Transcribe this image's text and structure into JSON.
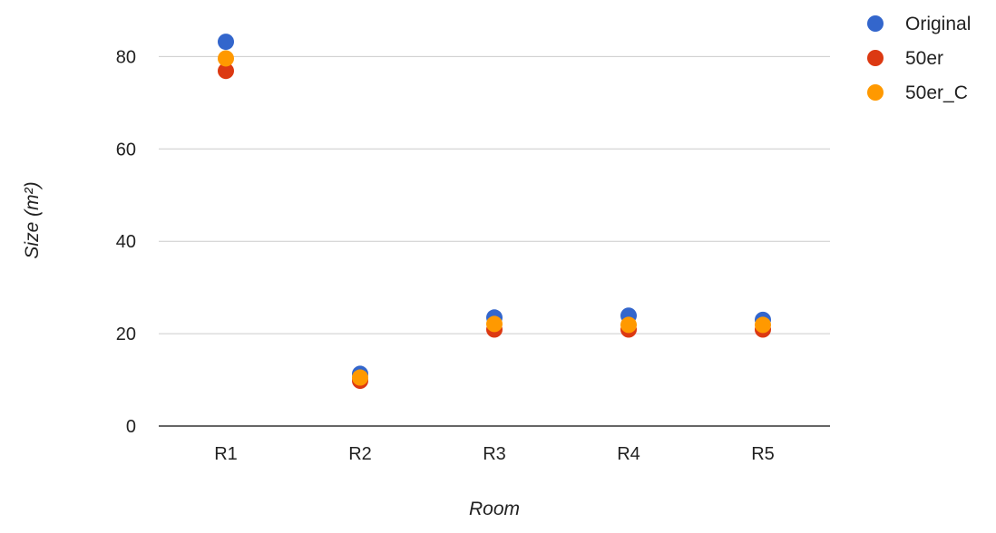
{
  "chart_data": {
    "type": "scatter",
    "categories": [
      "R1",
      "R2",
      "R3",
      "R4",
      "R5"
    ],
    "series": [
      {
        "name": "Original",
        "color": "#3366cc",
        "values": [
          83.2,
          11.3,
          23.5,
          23.9,
          23.0
        ]
      },
      {
        "name": "50er",
        "color": "#dc3912",
        "values": [
          76.9,
          9.8,
          20.9,
          20.9,
          20.9
        ]
      },
      {
        "name": "50er_C",
        "color": "#ff9900",
        "values": [
          79.6,
          10.5,
          22.1,
          21.9,
          21.9
        ]
      }
    ],
    "xlabel": "Room",
    "ylabel": "Size (m²)",
    "ylim": [
      0,
      90
    ],
    "yticks": [
      0,
      20,
      40,
      60,
      80
    ],
    "grid": true,
    "legend": "top-right"
  }
}
